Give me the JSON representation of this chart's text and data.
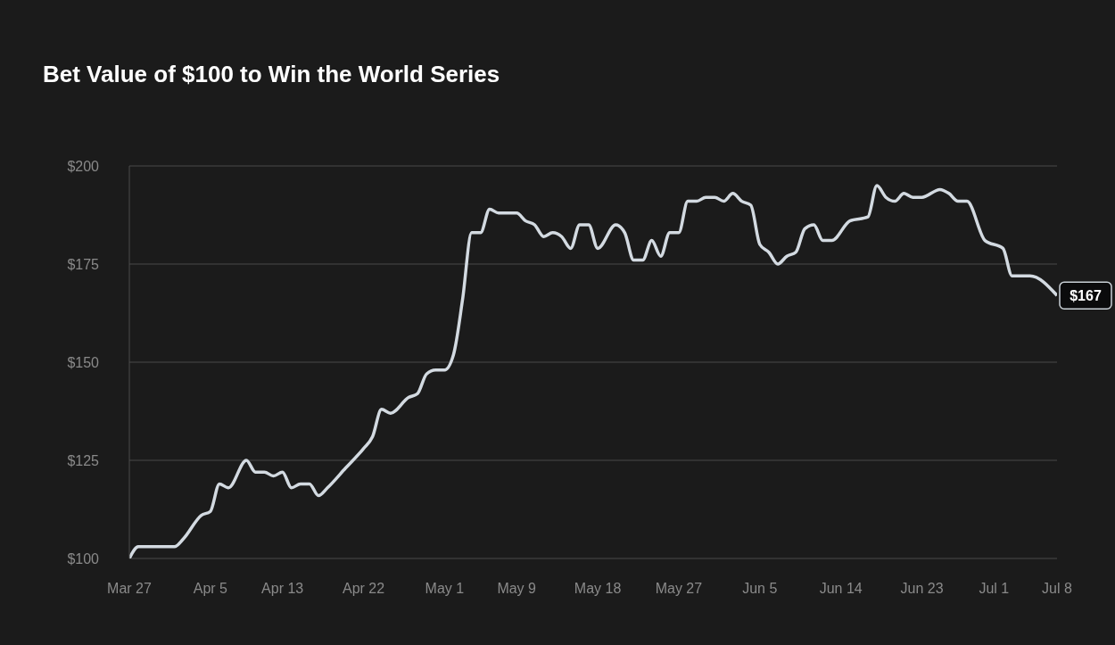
{
  "chart_data": {
    "type": "line",
    "title": "Bet Value of $100 to Win the World Series",
    "x": [
      "--03-27",
      "--03-28",
      "--04-01",
      "--04-02",
      "--04-04",
      "--04-05",
      "--04-06",
      "--04-07",
      "--04-09",
      "--04-10",
      "--04-11",
      "--04-12",
      "--04-13",
      "--04-14",
      "--04-15",
      "--04-16",
      "--04-17",
      "--04-18",
      "--04-20",
      "--04-22",
      "--04-23",
      "--04-24",
      "--04-25",
      "--04-27",
      "--04-28",
      "--04-29",
      "--04-30",
      "--05-01",
      "--05-02",
      "--05-03",
      "--05-04",
      "--05-05",
      "--05-06",
      "--05-07",
      "--05-09",
      "--05-10",
      "--05-11",
      "--05-12",
      "--05-13",
      "--05-14",
      "--05-15",
      "--05-16",
      "--05-17",
      "--05-18",
      "--05-20",
      "--05-21",
      "--05-22",
      "--05-23",
      "--05-24",
      "--05-25",
      "--05-26",
      "--05-27",
      "--05-28",
      "--05-29",
      "--05-30",
      "--05-31",
      "--06-01",
      "--06-02",
      "--06-03",
      "--06-04",
      "--06-05",
      "--06-06",
      "--06-07",
      "--06-08",
      "--06-09",
      "--06-10",
      "--06-11",
      "--06-12",
      "--06-13",
      "--06-15",
      "--06-17",
      "--06-18",
      "--06-19",
      "--06-20",
      "--06-21",
      "--06-22",
      "--06-23",
      "--06-25",
      "--06-26",
      "--06-27",
      "--06-28",
      "--06-30",
      "--07-02",
      "--07-03",
      "--07-05",
      "--07-08"
    ],
    "series": [
      {
        "color": "#d3dae1",
        "values": [
          100,
          103,
          103,
          105,
          111,
          112,
          119,
          118,
          125,
          122,
          122,
          121,
          122,
          118,
          119,
          119,
          116,
          118,
          123,
          128,
          131,
          138,
          137,
          141,
          142,
          147,
          148,
          148,
          152,
          166,
          183,
          183,
          189,
          188,
          188,
          186,
          185,
          182,
          183,
          182,
          179,
          185,
          185,
          179,
          185,
          183,
          176,
          176,
          181,
          177,
          183,
          183,
          191,
          191,
          192,
          192,
          191,
          193,
          191,
          190,
          180,
          178,
          175,
          177,
          178,
          184,
          185,
          181,
          181,
          186,
          187,
          195,
          192,
          191,
          193,
          192,
          192,
          194,
          193,
          191,
          191,
          181,
          179,
          172,
          172,
          167
        ]
      }
    ],
    "xlim": [
      "--03-27",
      "--07-08"
    ],
    "xticks": [
      {
        "value": "--03-27",
        "label": "Mar 27"
      },
      {
        "value": "--04-05",
        "label": "Apr 5"
      },
      {
        "value": "--04-13",
        "label": "Apr 13"
      },
      {
        "value": "--04-22",
        "label": "Apr 22"
      },
      {
        "value": "--05-01",
        "label": "May 1"
      },
      {
        "value": "--05-09",
        "label": "May 9"
      },
      {
        "value": "--05-18",
        "label": "May 18"
      },
      {
        "value": "--05-27",
        "label": "May 27"
      },
      {
        "value": "--06-05",
        "label": "Jun 5"
      },
      {
        "value": "--06-14",
        "label": "Jun 14"
      },
      {
        "value": "--06-23",
        "label": "Jun 23"
      },
      {
        "value": "--07-01",
        "label": "Jul 1"
      },
      {
        "value": "--07-08",
        "label": "Jul 8"
      }
    ],
    "ylim": [
      100,
      200
    ],
    "yticks": [
      {
        "value": 100,
        "label": "$100"
      },
      {
        "value": 125,
        "label": "$125"
      },
      {
        "value": 150,
        "label": "$150"
      },
      {
        "value": 175,
        "label": "$175"
      },
      {
        "value": 200,
        "label": "$200"
      }
    ],
    "grid": "y",
    "marker": "none",
    "line_style": "solid",
    "annotations": [
      {
        "text": "$167",
        "x": "--07-08",
        "y": 167
      }
    ]
  }
}
